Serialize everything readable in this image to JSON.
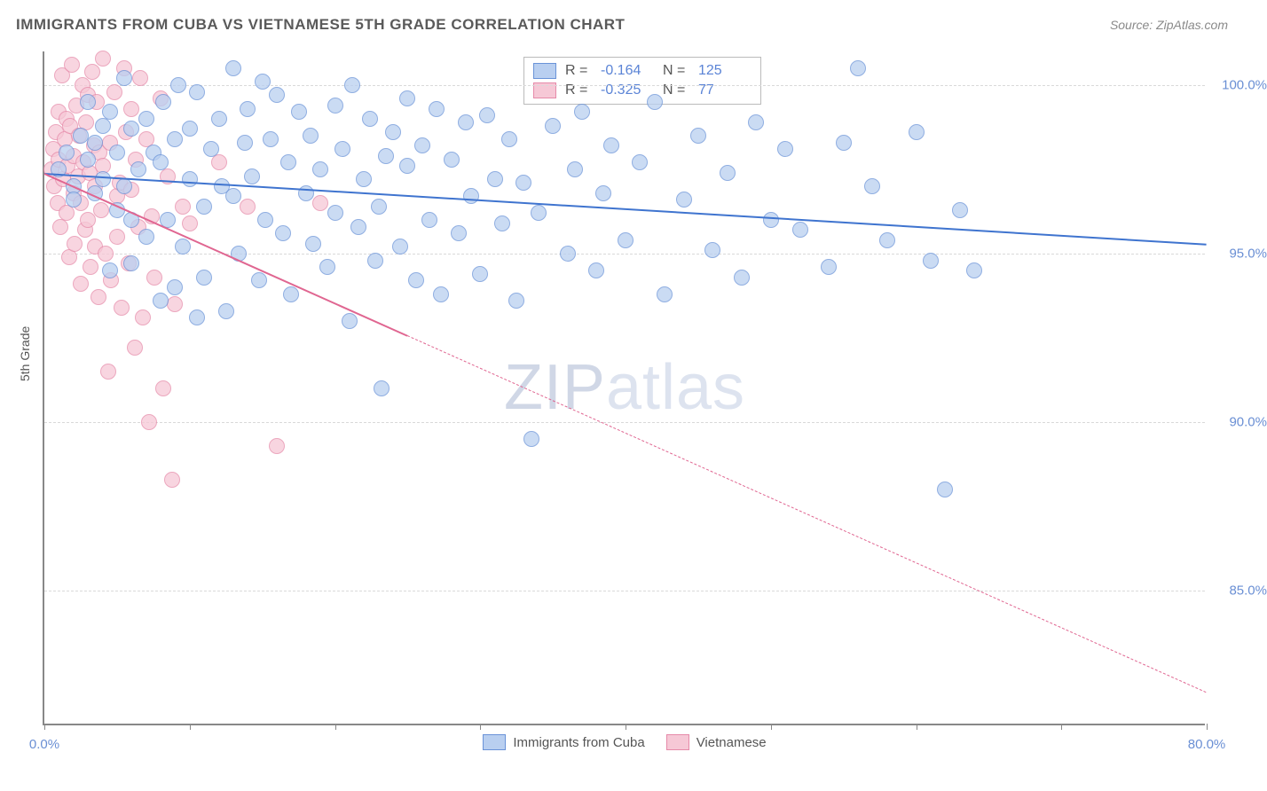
{
  "title": "IMMIGRANTS FROM CUBA VS VIETNAMESE 5TH GRADE CORRELATION CHART",
  "source_label": "Source: ZipAtlas.com",
  "y_axis_title": "5th Grade",
  "watermark": {
    "part1": "ZIP",
    "part2": "atlas"
  },
  "chart": {
    "type": "scatter",
    "background_color": "#ffffff",
    "axis_color": "#888888",
    "grid_color": "#d9d9d9",
    "label_color": "#6a8fd4",
    "label_fontsize": 15,
    "title_fontsize": 17,
    "title_color": "#5a5a5a",
    "marker_radius": 9,
    "xlim": [
      0,
      80
    ],
    "ylim": [
      81,
      101
    ],
    "x_ticks": [
      0,
      10,
      20,
      30,
      40,
      50,
      60,
      70,
      80
    ],
    "x_tick_labels": {
      "0": "0.0%",
      "80": "80.0%"
    },
    "y_gridlines": [
      85,
      90,
      95,
      100
    ],
    "y_tick_labels": {
      "85": "85.0%",
      "90": "90.0%",
      "95": "95.0%",
      "100": "100.0%"
    },
    "series": [
      {
        "name": "Immigrants from Cuba",
        "fill": "#b9cff0",
        "stroke": "#6a93d8",
        "opacity": 0.75,
        "R": "-0.164",
        "N": "125",
        "trend": {
          "x1": 0,
          "y1": 97.4,
          "x2": 80,
          "y2": 95.3,
          "color": "#3f74cf",
          "width": 2.5,
          "dash": "none"
        },
        "points": [
          [
            1,
            97.5
          ],
          [
            1.5,
            98
          ],
          [
            2,
            97
          ],
          [
            2,
            96.6
          ],
          [
            2.5,
            98.5
          ],
          [
            3,
            97.8
          ],
          [
            3,
            99.5
          ],
          [
            3.5,
            96.8
          ],
          [
            3.5,
            98.3
          ],
          [
            4,
            98.8
          ],
          [
            4,
            97.2
          ],
          [
            4.5,
            94.5
          ],
          [
            4.5,
            99.2
          ],
          [
            5,
            96.3
          ],
          [
            5,
            98
          ],
          [
            5.5,
            97
          ],
          [
            5.5,
            100.2
          ],
          [
            6,
            96
          ],
          [
            6,
            98.7
          ],
          [
            6,
            94.7
          ],
          [
            6.5,
            97.5
          ],
          [
            7,
            99
          ],
          [
            7,
            95.5
          ],
          [
            7.5,
            98
          ],
          [
            8,
            97.7
          ],
          [
            8,
            93.6
          ],
          [
            8.2,
            99.5
          ],
          [
            8.5,
            96
          ],
          [
            9,
            98.4
          ],
          [
            9,
            94
          ],
          [
            9.2,
            100
          ],
          [
            9.5,
            95.2
          ],
          [
            10,
            97.2
          ],
          [
            10,
            98.7
          ],
          [
            10.5,
            93.1
          ],
          [
            10.5,
            99.8
          ],
          [
            11,
            96.4
          ],
          [
            11,
            94.3
          ],
          [
            11.5,
            98.1
          ],
          [
            12,
            99
          ],
          [
            12.2,
            97
          ],
          [
            12.5,
            93.3
          ],
          [
            13,
            100.5
          ],
          [
            13,
            96.7
          ],
          [
            13.4,
            95
          ],
          [
            13.8,
            98.3
          ],
          [
            14,
            99.3
          ],
          [
            14.3,
            97.3
          ],
          [
            14.8,
            94.2
          ],
          [
            15,
            100.1
          ],
          [
            15.2,
            96
          ],
          [
            15.6,
            98.4
          ],
          [
            16,
            99.7
          ],
          [
            16.4,
            95.6
          ],
          [
            16.8,
            97.7
          ],
          [
            17,
            93.8
          ],
          [
            17.5,
            99.2
          ],
          [
            18,
            96.8
          ],
          [
            18.3,
            98.5
          ],
          [
            18.5,
            95.3
          ],
          [
            19,
            97.5
          ],
          [
            19.5,
            94.6
          ],
          [
            20,
            99.4
          ],
          [
            20,
            96.2
          ],
          [
            20.5,
            98.1
          ],
          [
            21,
            93
          ],
          [
            21.2,
            100
          ],
          [
            21.6,
            95.8
          ],
          [
            22,
            97.2
          ],
          [
            22.4,
            99
          ],
          [
            22.8,
            94.8
          ],
          [
            23,
            96.4
          ],
          [
            23.2,
            91
          ],
          [
            23.5,
            97.9
          ],
          [
            24,
            98.6
          ],
          [
            24.5,
            95.2
          ],
          [
            25,
            97.6
          ],
          [
            25,
            99.6
          ],
          [
            25.6,
            94.2
          ],
          [
            26,
            98.2
          ],
          [
            26.5,
            96
          ],
          [
            27,
            99.3
          ],
          [
            27.3,
            93.8
          ],
          [
            28,
            97.8
          ],
          [
            28.5,
            95.6
          ],
          [
            29,
            98.9
          ],
          [
            29.4,
            96.7
          ],
          [
            30,
            94.4
          ],
          [
            30.5,
            99.1
          ],
          [
            31,
            97.2
          ],
          [
            31.5,
            95.9
          ],
          [
            32,
            98.4
          ],
          [
            32.5,
            93.6
          ],
          [
            33,
            97.1
          ],
          [
            33.5,
            89.5
          ],
          [
            34,
            96.2
          ],
          [
            35,
            98.8
          ],
          [
            36,
            95
          ],
          [
            36.5,
            97.5
          ],
          [
            37,
            99.2
          ],
          [
            38,
            94.5
          ],
          [
            38.5,
            96.8
          ],
          [
            39,
            98.2
          ],
          [
            40,
            95.4
          ],
          [
            41,
            97.7
          ],
          [
            42,
            99.5
          ],
          [
            42.7,
            93.8
          ],
          [
            44,
            96.6
          ],
          [
            45,
            98.5
          ],
          [
            46,
            95.1
          ],
          [
            47,
            97.4
          ],
          [
            48,
            94.3
          ],
          [
            49,
            98.9
          ],
          [
            50,
            96
          ],
          [
            51,
            98.1
          ],
          [
            52,
            95.7
          ],
          [
            54,
            94.6
          ],
          [
            55,
            98.3
          ],
          [
            56,
            100.5
          ],
          [
            57,
            97
          ],
          [
            58,
            95.4
          ],
          [
            60,
            98.6
          ],
          [
            61,
            94.8
          ],
          [
            62,
            88
          ],
          [
            63,
            96.3
          ],
          [
            64,
            94.5
          ]
        ]
      },
      {
        "name": "Vietnamese",
        "fill": "#f6c8d6",
        "stroke": "#e68aa9",
        "opacity": 0.75,
        "R": "-0.325",
        "N": "77",
        "trend": {
          "x1": 0,
          "y1": 97.4,
          "x2": 80,
          "y2": 82,
          "x_solid_end": 25,
          "color": "#e06691",
          "width": 2.5
        },
        "points": [
          [
            0.5,
            97.5
          ],
          [
            0.6,
            98.1
          ],
          [
            0.7,
            97
          ],
          [
            0.8,
            98.6
          ],
          [
            0.9,
            96.5
          ],
          [
            1,
            99.2
          ],
          [
            1,
            97.8
          ],
          [
            1.1,
            95.8
          ],
          [
            1.2,
            100.3
          ],
          [
            1.3,
            97.2
          ],
          [
            1.4,
            98.4
          ],
          [
            1.5,
            96.2
          ],
          [
            1.5,
            99
          ],
          [
            1.6,
            97.6
          ],
          [
            1.7,
            94.9
          ],
          [
            1.8,
            98.8
          ],
          [
            1.9,
            100.6
          ],
          [
            2,
            96.8
          ],
          [
            2,
            97.9
          ],
          [
            2.1,
            95.3
          ],
          [
            2.2,
            99.4
          ],
          [
            2.3,
            97.3
          ],
          [
            2.4,
            98.5
          ],
          [
            2.5,
            94.1
          ],
          [
            2.5,
            96.5
          ],
          [
            2.6,
            100
          ],
          [
            2.7,
            97.7
          ],
          [
            2.8,
            95.7
          ],
          [
            2.9,
            98.9
          ],
          [
            3,
            99.7
          ],
          [
            3,
            96
          ],
          [
            3.1,
            97.4
          ],
          [
            3.2,
            94.6
          ],
          [
            3.3,
            100.4
          ],
          [
            3.4,
            98.2
          ],
          [
            3.5,
            95.2
          ],
          [
            3.5,
            97
          ],
          [
            3.6,
            99.5
          ],
          [
            3.7,
            93.7
          ],
          [
            3.8,
            98
          ],
          [
            3.9,
            96.3
          ],
          [
            4,
            100.8
          ],
          [
            4,
            97.6
          ],
          [
            4.2,
            95
          ],
          [
            4.4,
            91.5
          ],
          [
            4.5,
            98.3
          ],
          [
            4.6,
            94.2
          ],
          [
            4.8,
            99.8
          ],
          [
            5,
            96.7
          ],
          [
            5,
            95.5
          ],
          [
            5.2,
            97.1
          ],
          [
            5.3,
            93.4
          ],
          [
            5.5,
            100.5
          ],
          [
            5.6,
            98.6
          ],
          [
            5.8,
            94.7
          ],
          [
            6,
            96.9
          ],
          [
            6,
            99.3
          ],
          [
            6.2,
            92.2
          ],
          [
            6.3,
            97.8
          ],
          [
            6.5,
            95.8
          ],
          [
            6.6,
            100.2
          ],
          [
            6.8,
            93.1
          ],
          [
            7,
            98.4
          ],
          [
            7.2,
            90
          ],
          [
            7.4,
            96.1
          ],
          [
            7.6,
            94.3
          ],
          [
            8,
            99.6
          ],
          [
            8.2,
            91
          ],
          [
            8.5,
            97.3
          ],
          [
            8.8,
            88.3
          ],
          [
            9,
            93.5
          ],
          [
            9.5,
            96.4
          ],
          [
            10,
            95.9
          ],
          [
            12,
            97.7
          ],
          [
            14,
            96.4
          ],
          [
            16,
            89.3
          ],
          [
            19,
            96.5
          ]
        ]
      }
    ],
    "legend_bottom": [
      {
        "label": "Immigrants from Cuba",
        "fill": "#b9cff0",
        "stroke": "#6a93d8"
      },
      {
        "label": "Vietnamese",
        "fill": "#f6c8d6",
        "stroke": "#e68aa9"
      }
    ]
  }
}
